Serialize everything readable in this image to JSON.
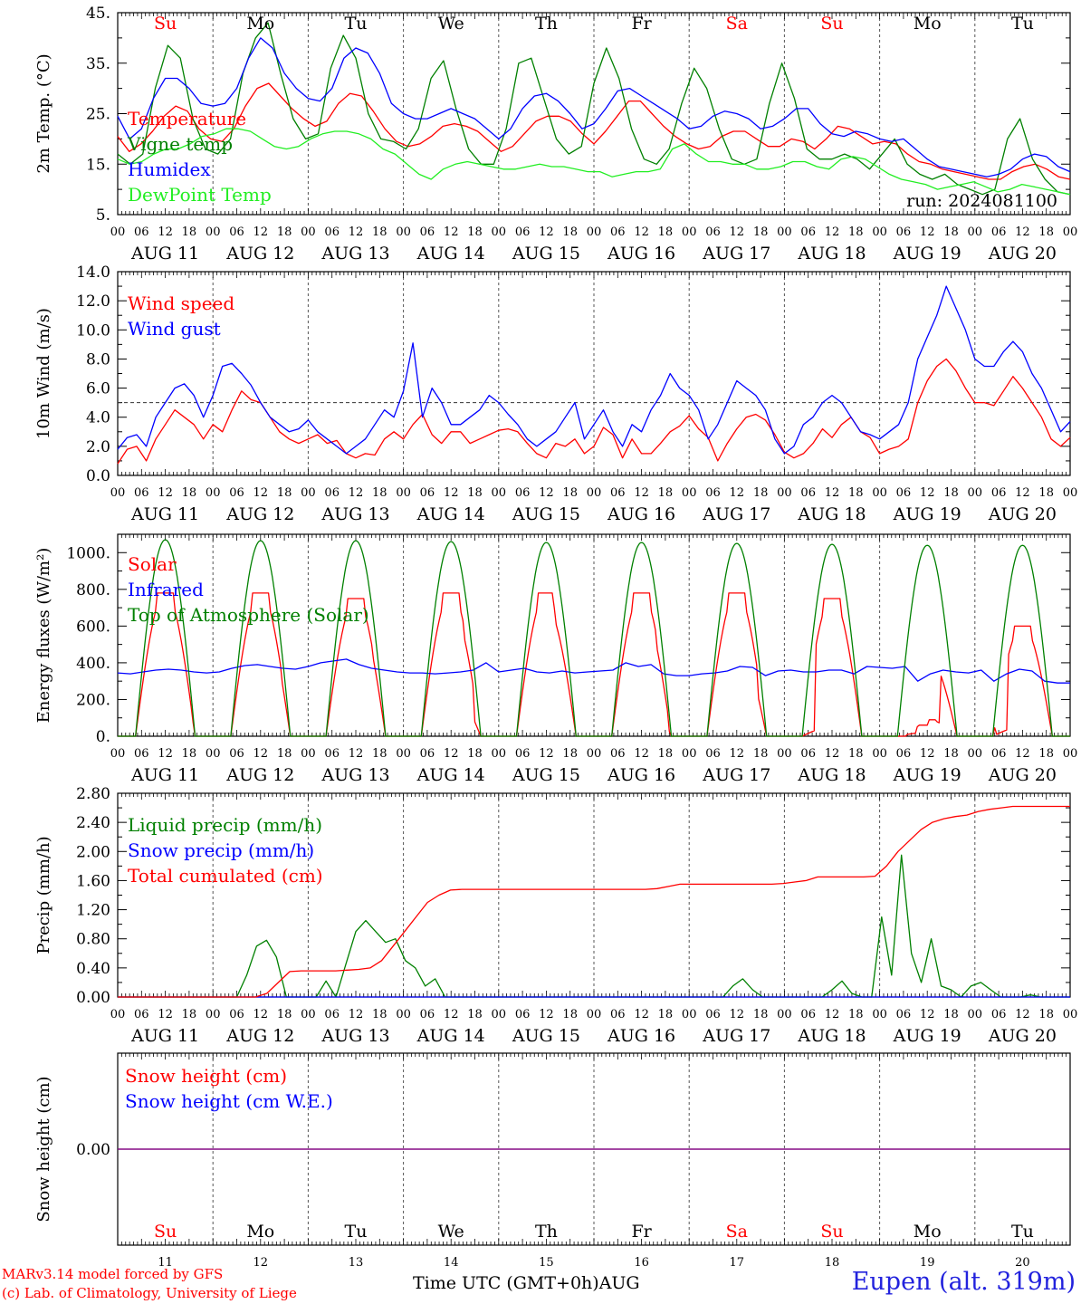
{
  "days": [
    "AUG 11",
    "AUG 12",
    "AUG 13",
    "AUG 14",
    "AUG 15",
    "AUG 16",
    "AUG 17",
    "AUG 18",
    "AUG 19",
    "AUG 20"
  ],
  "weekdays": [
    "Su",
    "Mo",
    "Tu",
    "We",
    "Th",
    "Fr",
    "Sa",
    "Su",
    "Mo",
    "Tu"
  ],
  "weekday_colors": [
    "#ff0000",
    "#000000",
    "#000000",
    "#000000",
    "#000000",
    "#000000",
    "#ff0000",
    "#ff0000",
    "#000000",
    "#000000"
  ],
  "day_numbers": [
    "11",
    "12",
    "13",
    "14",
    "15",
    "16",
    "17",
    "18",
    "19",
    "20"
  ],
  "hour_ticks": [
    "00",
    "06",
    "12",
    "18"
  ],
  "footer": {
    "credit_line1": "MARv3.14 model forced by GFS",
    "credit_line2": "(c) Lab. of Climatology, University of Liege",
    "xaxis_title": "Time UTC (GMT+0h)",
    "month": "AUG",
    "station": "Eupen (alt. 319m)"
  },
  "chart_data": [
    {
      "type": "line",
      "ylabel": "2m Temp. (°C)",
      "ylim": [
        5,
        45
      ],
      "yticks": [
        "5.",
        "15.",
        "25.",
        "35.",
        "45."
      ],
      "annotation": "run: 2024081100",
      "series": [
        {
          "name": "Temperature",
          "color": "#ff0000",
          "y": [
            20.5,
            17.5,
            19,
            21.5,
            24.5,
            26.5,
            25.5,
            22,
            20,
            19.5,
            22,
            26.5,
            30,
            31,
            28.5,
            26,
            24,
            22.5,
            23.5,
            27,
            29,
            28.5,
            25.5,
            22,
            19.5,
            18.5,
            19,
            20.5,
            22.5,
            23,
            22.5,
            21.5,
            19.5,
            17.5,
            18.5,
            21,
            23.5,
            24.5,
            24.5,
            23.5,
            21,
            19,
            21.5,
            24.5,
            27.5,
            27.5,
            25,
            22.5,
            20.5,
            19,
            18,
            18.5,
            20.5,
            21.5,
            21.5,
            20,
            18.5,
            18.5,
            20,
            19.5,
            18,
            20,
            22.5,
            22,
            20.5,
            19,
            19.5,
            19,
            17,
            15.5,
            15,
            14,
            13.5,
            13,
            12.5,
            12,
            12,
            13.5,
            14.5,
            15,
            14,
            12.5,
            12
          ]
        },
        {
          "name": "Vigne temp",
          "color": "#008000",
          "y": [
            17,
            15,
            17,
            30,
            38.5,
            36,
            24,
            18,
            17,
            20,
            33,
            40,
            43,
            33,
            24,
            20,
            21,
            34,
            40.5,
            36,
            25,
            20,
            19.5,
            18,
            22,
            32,
            35.5,
            26,
            18,
            15,
            15,
            22,
            35,
            36,
            28,
            20,
            17,
            18.5,
            31,
            38,
            32,
            22,
            16,
            15,
            18,
            27,
            34,
            30,
            22,
            16,
            15,
            16,
            27,
            35,
            28,
            18,
            16,
            16,
            17,
            16,
            14,
            17,
            20,
            15,
            13,
            12,
            13,
            11,
            10,
            9,
            10,
            20,
            24,
            16,
            12,
            9.5,
            9
          ]
        },
        {
          "name": "Humidex",
          "color": "#0000ff",
          "y": [
            24.5,
            20,
            22,
            28,
            32,
            32,
            30,
            27,
            26.5,
            27,
            30,
            36,
            40,
            38,
            33,
            30,
            28,
            27.5,
            30,
            36,
            38,
            37,
            33,
            27,
            25,
            24,
            24,
            25,
            26,
            25,
            24,
            22,
            20,
            22,
            26,
            28.5,
            29,
            27.5,
            25,
            22,
            23,
            26,
            29.5,
            30,
            28.5,
            27,
            25.5,
            24,
            22,
            22.5,
            24.5,
            25.5,
            25,
            24,
            22,
            22.5,
            24,
            26,
            26,
            23,
            21,
            20.5,
            21.5,
            21,
            20,
            19.5,
            20,
            18,
            16,
            14.5,
            14,
            13.5,
            13,
            12.5,
            13,
            14,
            16,
            17,
            16.5,
            14.5,
            13.5
          ]
        },
        {
          "name": "DewPoint Temp",
          "color": "#22ee22",
          "y": [
            16,
            15,
            15.5,
            17,
            18,
            18,
            19,
            20.5,
            21,
            22,
            22,
            21.5,
            20,
            18.5,
            18,
            18.5,
            20,
            21,
            21.5,
            21.5,
            21,
            20,
            18,
            17,
            15,
            13,
            12,
            14,
            15,
            15.5,
            15,
            14.5,
            14,
            14,
            14.5,
            15,
            14.5,
            14.5,
            14,
            13.5,
            13.5,
            12.5,
            13,
            13.5,
            13.5,
            14,
            18,
            19,
            17,
            15.5,
            15.5,
            15,
            15,
            14,
            14,
            14.5,
            15.5,
            15.5,
            14.5,
            14,
            16,
            16.5,
            16,
            14.5,
            13,
            12,
            11.5,
            11,
            10,
            10.5,
            11,
            11.5,
            10.5,
            9.5,
            10,
            11,
            10.5,
            10,
            9.5,
            9
          ]
        }
      ]
    },
    {
      "type": "line",
      "ylabel": "10m Wind (m/s)",
      "ylim": [
        0,
        14
      ],
      "yticks": [
        "0.0",
        "2.0",
        "4.0",
        "6.0",
        "8.0",
        "10.0",
        "12.0",
        "14.0"
      ],
      "reference_line": 5,
      "series": [
        {
          "name": "Wind speed",
          "color": "#ff0000",
          "y": [
            0.8,
            1.8,
            2,
            1,
            2.5,
            3.5,
            4.5,
            4,
            3.5,
            2.5,
            3.5,
            3,
            4.5,
            5.8,
            5.2,
            5,
            4,
            3,
            2.5,
            2.2,
            2.5,
            2.8,
            2.2,
            2.4,
            1.5,
            1.2,
            1.5,
            1.4,
            2.5,
            3,
            2.5,
            3.5,
            4.2,
            2.8,
            2.2,
            3,
            3,
            2.2,
            2.5,
            2.8,
            3.1,
            3.2,
            3,
            2.2,
            1.5,
            1.2,
            2.2,
            2,
            2.5,
            1.5,
            2,
            3.3,
            2.8,
            1.2,
            2.5,
            1.5,
            1.5,
            2.2,
            3,
            3.4,
            4.1,
            3.2,
            2.6,
            1,
            2.2,
            3.2,
            4,
            4.2,
            3.8,
            2.8,
            1.6,
            1.2,
            1.5,
            2.2,
            3.2,
            2.6,
            3.5,
            4,
            3,
            2.6,
            1.5,
            1.8,
            2,
            2.5,
            5,
            6.5,
            7.5,
            8,
            7.2,
            6,
            5,
            5,
            4.8,
            5.8,
            6.8,
            6,
            5,
            4,
            2.5,
            2,
            2.6
          ]
        },
        {
          "name": "Wind gust",
          "color": "#0000ff",
          "y": [
            1.8,
            2.6,
            2.8,
            2,
            4,
            5,
            6,
            6.3,
            5.5,
            4,
            5.5,
            7.5,
            7.7,
            7,
            6.2,
            5,
            4,
            3.5,
            3,
            3.2,
            3.8,
            3,
            2.5,
            2,
            1.5,
            2,
            2.5,
            3.5,
            4.5,
            4,
            5.8,
            9.1,
            4,
            6,
            5,
            3.5,
            3.5,
            4,
            4.5,
            5.5,
            5,
            4.2,
            3.5,
            2.5,
            2,
            2.5,
            3,
            4,
            5,
            2.5,
            3.5,
            4.5,
            3,
            2,
            3.5,
            3,
            4.5,
            5.5,
            7,
            6,
            5.5,
            4.5,
            2.5,
            3.5,
            5,
            6.5,
            6,
            5.5,
            4.5,
            2.5,
            1.5,
            2,
            3.5,
            4,
            5,
            5.5,
            5,
            4,
            3,
            2.8,
            2.5,
            3,
            3.5,
            5,
            8,
            9.5,
            11,
            13,
            11.5,
            10,
            8,
            7.5,
            7.5,
            8.5,
            9.2,
            8.5,
            7,
            6,
            4.5,
            3,
            3.7
          ]
        }
      ]
    },
    {
      "type": "line",
      "ylabel": "Energy fluxes (W/m²)",
      "ylim": [
        0,
        1100
      ],
      "yticks": [
        "0.",
        "200.",
        "400.",
        "600.",
        "800.",
        "1000."
      ],
      "series": [
        {
          "name": "Solar",
          "color": "#ff0000",
          "y": [
            0,
            0,
            0,
            300,
            780,
            700,
            250,
            0,
            0,
            0,
            0,
            300,
            780,
            700,
            250,
            0,
            0,
            0,
            0,
            300,
            750,
            700,
            250,
            0,
            0,
            0,
            0,
            300,
            780,
            700,
            250,
            0,
            0,
            0,
            0,
            350,
            780,
            500,
            700,
            250,
            0,
            0,
            0,
            0,
            300,
            780,
            700,
            250,
            0,
            0,
            0,
            0,
            200,
            350,
            780,
            450,
            500,
            100,
            0,
            0,
            0,
            0,
            30,
            50,
            750,
            600,
            230,
            0,
            0,
            0,
            0,
            0,
            20,
            60,
            90,
            440,
            50,
            0,
            0,
            0,
            0,
            600,
            300,
            60,
            0
          ]
        },
        {
          "name": "Infrared",
          "color": "#0000ff",
          "y": [
            345,
            340,
            350,
            360,
            365,
            360,
            350,
            345,
            350,
            370,
            385,
            390,
            380,
            370,
            365,
            380,
            400,
            410,
            420,
            390,
            370,
            360,
            350,
            345,
            345,
            340,
            345,
            350,
            360,
            400,
            350,
            360,
            370,
            350,
            345,
            355,
            345,
            350,
            355,
            360,
            400,
            380,
            390,
            340,
            330,
            330,
            340,
            345,
            355,
            380,
            375,
            330,
            355,
            360,
            350,
            350,
            360,
            360,
            340,
            380,
            375,
            370,
            380,
            300,
            340,
            360,
            350,
            345,
            360,
            300,
            340,
            365,
            355,
            300,
            290,
            290
          ]
        },
        {
          "name": "Top of Atmosphere (Solar)",
          "color": "#008000",
          "y": [
            0,
            1070,
            0,
            1065,
            0,
            1065,
            0,
            1060,
            0,
            1055,
            0,
            1055,
            0,
            1050,
            0,
            1045,
            0,
            1040,
            0,
            1040
          ]
        }
      ]
    },
    {
      "type": "line",
      "ylabel": "Precip (mm/h)",
      "ylim": [
        0,
        2.8
      ],
      "yticks": [
        "0.00",
        "0.40",
        "0.80",
        "1.20",
        "1.60",
        "2.00",
        "2.40",
        "2.80"
      ],
      "series": [
        {
          "name": "Liquid precip (mm/h)",
          "color": "#008000",
          "y": [
            0,
            0,
            0,
            0,
            0,
            0,
            0,
            0,
            0,
            0,
            0,
            0,
            0,
            0.3,
            0.7,
            0.78,
            0.55,
            0,
            0,
            0,
            0,
            0.22,
            0,
            0.45,
            0.9,
            1.05,
            0.9,
            0.75,
            0.8,
            0.5,
            0.4,
            0.15,
            0.25,
            0,
            0,
            0,
            0,
            0,
            0,
            0,
            0,
            0,
            0,
            0,
            0,
            0,
            0,
            0,
            0,
            0,
            0,
            0,
            0,
            0,
            0,
            0,
            0,
            0,
            0,
            0,
            0,
            0,
            0.15,
            0.25,
            0.1,
            0,
            0,
            0,
            0,
            0,
            0,
            0,
            0.1,
            0.22,
            0.05,
            0,
            0,
            1.1,
            0.3,
            1.95,
            0.6,
            0.2,
            0.8,
            0.15,
            0.1,
            0,
            0.15,
            0.2,
            0.1,
            0,
            0,
            0,
            0.03,
            0,
            0,
            0,
            0
          ]
        },
        {
          "name": "Snow precip (mm/h)",
          "color": "#0000ff",
          "y": [
            0,
            0
          ]
        },
        {
          "name": "Total cumulated (cm)",
          "color": "#ff0000",
          "y": [
            0,
            0,
            0,
            0,
            0,
            0,
            0,
            0,
            0,
            0,
            0,
            0,
            0,
            0.05,
            0.2,
            0.35,
            0.36,
            0.36,
            0.36,
            0.36,
            0.37,
            0.38,
            0.4,
            0.5,
            0.7,
            0.9,
            1.1,
            1.3,
            1.4,
            1.47,
            1.48,
            1.48,
            1.48,
            1.48,
            1.48,
            1.48,
            1.48,
            1.48,
            1.48,
            1.48,
            1.48,
            1.48,
            1.48,
            1.48,
            1.48,
            1.48,
            1.48,
            1.49,
            1.52,
            1.55,
            1.55,
            1.55,
            1.55,
            1.55,
            1.55,
            1.55,
            1.55,
            1.55,
            1.56,
            1.58,
            1.6,
            1.65,
            1.65,
            1.65,
            1.65,
            1.65,
            1.66,
            1.8,
            2.0,
            2.15,
            2.3,
            2.4,
            2.45,
            2.48,
            2.5,
            2.55,
            2.58,
            2.6,
            2.62,
            2.62,
            2.62,
            2.62,
            2.62,
            2.62
          ]
        }
      ]
    },
    {
      "type": "line",
      "ylabel": "Snow height (cm)",
      "ylim": [
        -1,
        1
      ],
      "yticks": [
        "0.00"
      ],
      "series": [
        {
          "name": "Snow height (cm)",
          "color": "#ff0000",
          "y": [
            0,
            0
          ]
        },
        {
          "name": "Snow height (cm W.E.)",
          "color": "#0000ff",
          "y": [
            0,
            0
          ]
        }
      ]
    }
  ]
}
